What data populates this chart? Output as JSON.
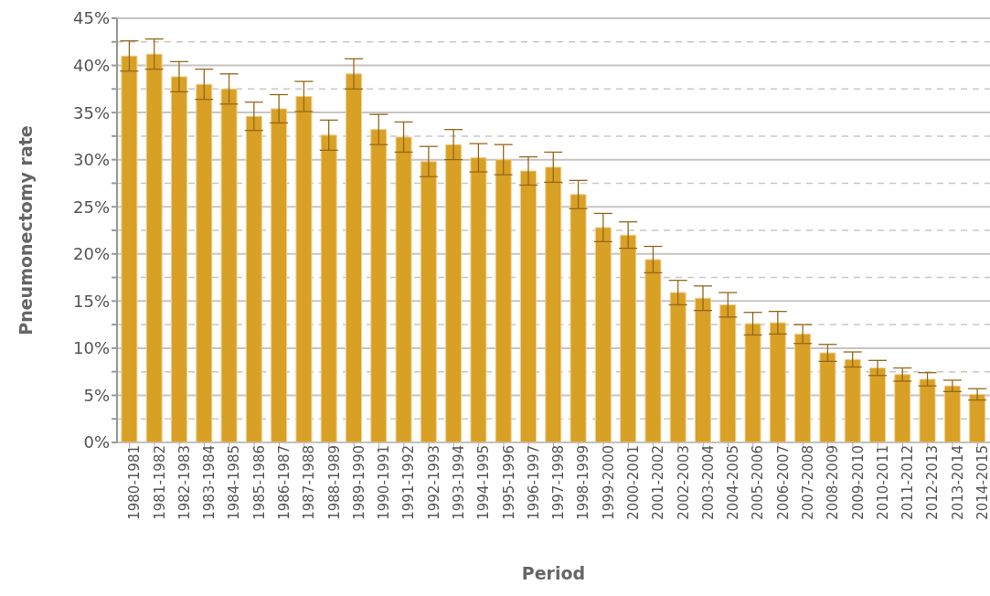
{
  "chart_data": {
    "type": "bar",
    "xlabel": "Period",
    "ylabel": "Pneumonectomy rate",
    "categories": [
      "1980-1981",
      "1981-1982",
      "1982-1983",
      "1983-1984",
      "1984-1985",
      "1985-1986",
      "1986-1987",
      "1987-1988",
      "1988-1989",
      "1989-1990",
      "1990-1991",
      "1991-1992",
      "1992-1993",
      "1993-1994",
      "1994-1995",
      "1995-1996",
      "1996-1997",
      "1997-1998",
      "1998-1999",
      "1999-2000",
      "2000-2001",
      "2001-2002",
      "2002-2003",
      "2003-2004",
      "2004-2005",
      "2005-2006",
      "2006-2007",
      "2007-2008",
      "2008-2009",
      "2009-2010",
      "2010-2011",
      "2011-2012",
      "2012-2013",
      "2013-2014",
      "2014-2015"
    ],
    "values": [
      41.0,
      41.2,
      38.8,
      38.0,
      37.5,
      34.6,
      35.4,
      36.7,
      32.6,
      39.1,
      33.2,
      32.4,
      29.8,
      31.6,
      30.2,
      30.0,
      28.8,
      29.2,
      26.3,
      22.8,
      22.0,
      19.4,
      15.9,
      15.3,
      14.6,
      12.6,
      12.7,
      11.5,
      9.5,
      8.8,
      7.9,
      7.2,
      6.7,
      6.0,
      5.1
    ],
    "errors": [
      1.6,
      1.6,
      1.6,
      1.6,
      1.6,
      1.5,
      1.5,
      1.6,
      1.6,
      1.6,
      1.6,
      1.6,
      1.6,
      1.6,
      1.5,
      1.6,
      1.5,
      1.6,
      1.5,
      1.5,
      1.4,
      1.4,
      1.3,
      1.3,
      1.3,
      1.2,
      1.2,
      1.0,
      0.9,
      0.8,
      0.8,
      0.7,
      0.7,
      0.6,
      0.6
    ],
    "color": "#d9a026",
    "ylim": [
      0,
      45
    ],
    "yticks": [
      {
        "value": 0,
        "label": "0%"
      },
      {
        "value": 2.5,
        "label": null
      },
      {
        "value": 5,
        "label": "5%"
      },
      {
        "value": 7.5,
        "label": null
      },
      {
        "value": 10,
        "label": "10%"
      },
      {
        "value": 12.5,
        "label": null
      },
      {
        "value": 15,
        "label": "15%"
      },
      {
        "value": 17.5,
        "label": null
      },
      {
        "value": 20,
        "label": "20%"
      },
      {
        "value": 22.5,
        "label": null
      },
      {
        "value": 25,
        "label": "25%"
      },
      {
        "value": 27.5,
        "label": null
      },
      {
        "value": 30,
        "label": "30%"
      },
      {
        "value": 32.5,
        "label": null
      },
      {
        "value": 35,
        "label": "35%"
      },
      {
        "value": 37.5,
        "label": null
      },
      {
        "value": 40,
        "label": "40%"
      },
      {
        "value": 42.5,
        "label": null
      },
      {
        "value": 45,
        "label": "45%"
      }
    ],
    "grid": "y"
  }
}
